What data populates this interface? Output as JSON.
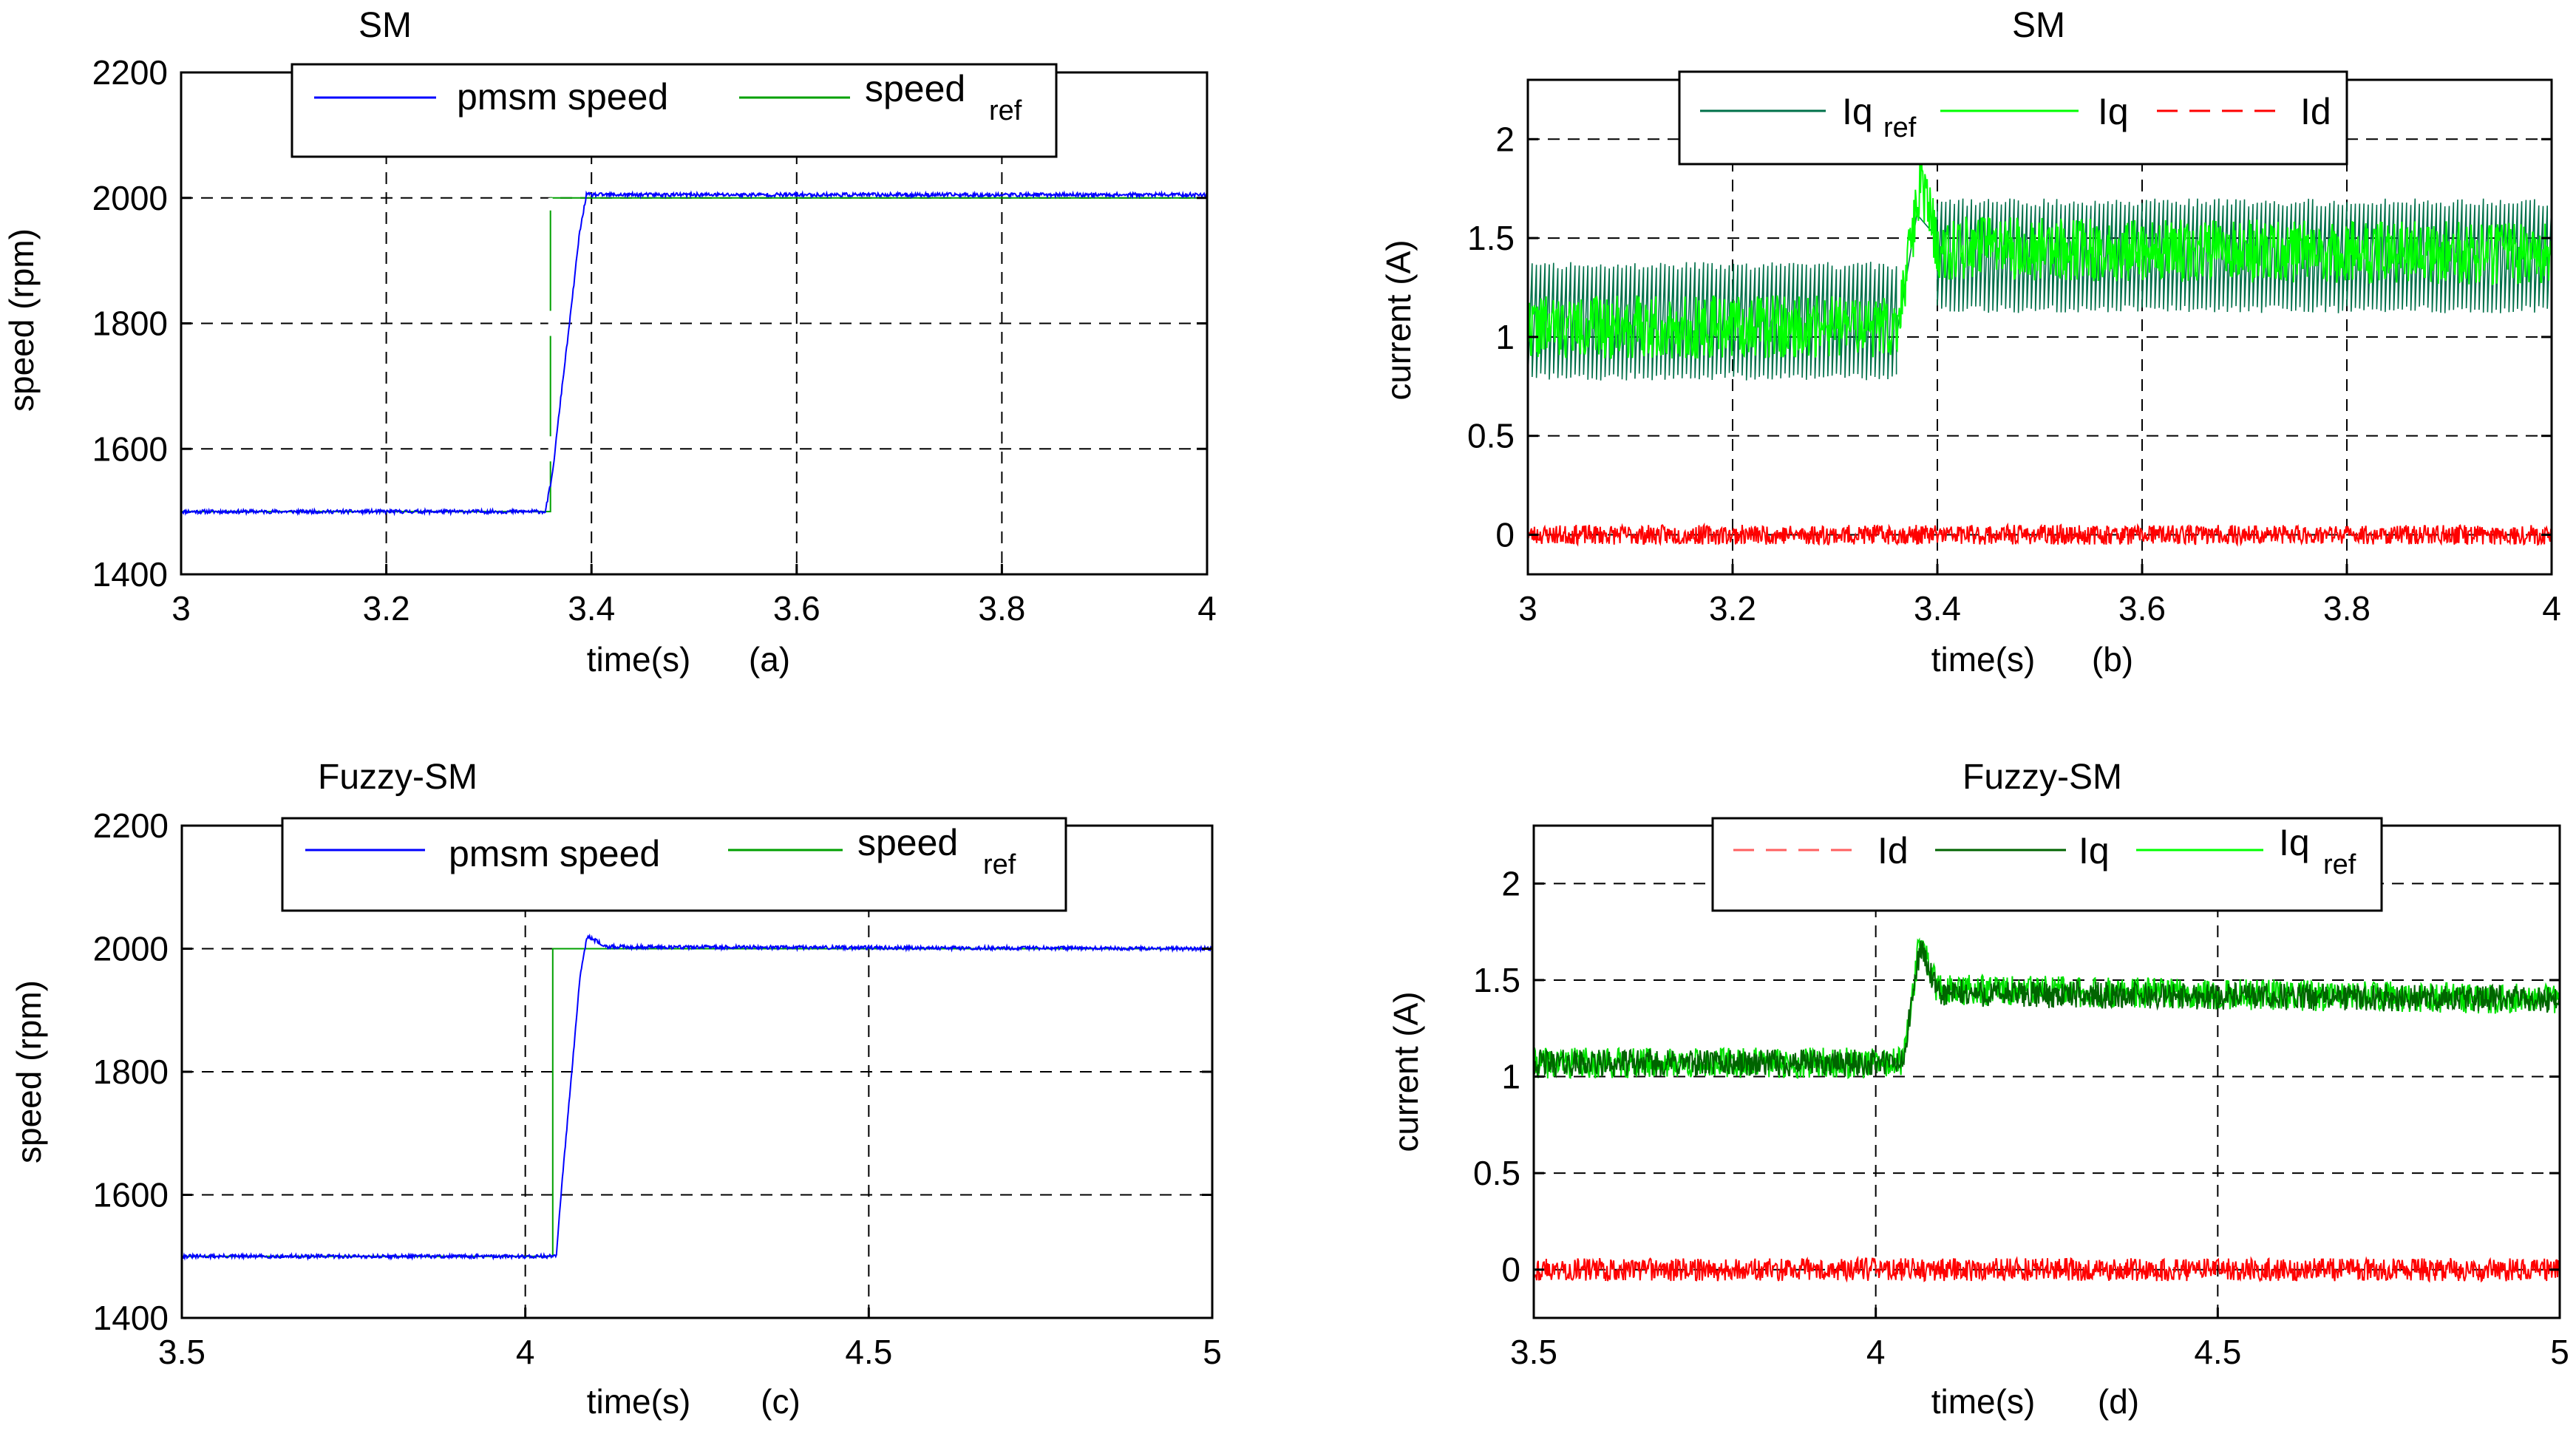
{
  "chart_data": [
    {
      "id": "a",
      "type": "line",
      "title": "SM",
      "xlabel": "time(s)",
      "caption": "(a)",
      "ylabel": "speed (rpm)",
      "xlim": [
        3,
        4
      ],
      "ylim": [
        1400,
        2200
      ],
      "xticks": [
        3,
        3.2,
        3.4,
        3.6,
        3.8,
        4
      ],
      "xtick_labels": [
        "3",
        "3.2",
        "3.4",
        "3.6",
        "3.8",
        "4"
      ],
      "yticks": [
        1400,
        1600,
        1800,
        2000,
        2200
      ],
      "ytick_labels": [
        "1400",
        "1600",
        "1800",
        "2000",
        "2200"
      ],
      "legend": [
        {
          "label": "pmsm speed",
          "sub": "",
          "color": "#0000ff",
          "dash": "solid"
        },
        {
          "label": "speed",
          "sub": "ref",
          "color": "#00a000",
          "dash": "solid"
        }
      ],
      "series": [
        {
          "name": "speed_ref",
          "color": "#00a000",
          "dash": "solid",
          "noise": 0,
          "seed": 0,
          "points": [
            [
              3.0,
              1500
            ],
            [
              3.36,
              1500
            ],
            [
              3.36,
              2000
            ],
            [
              4.0,
              2000
            ]
          ],
          "gaps": [
            [
              1580,
              1620
            ],
            [
              1780,
              1820
            ],
            [
              1980,
              2000
            ]
          ]
        },
        {
          "name": "pmsm speed",
          "color": "#0000ff",
          "dash": "solid",
          "noise": 3,
          "seed": 11,
          "points": [
            [
              3.0,
              1500
            ],
            [
              3.355,
              1500
            ],
            [
              3.362,
              1560
            ],
            [
              3.37,
              1680
            ],
            [
              3.38,
              1820
            ],
            [
              3.388,
              1940
            ],
            [
              3.395,
              2005
            ],
            [
              4.0,
              2005
            ]
          ]
        }
      ]
    },
    {
      "id": "b",
      "type": "line",
      "title": "SM",
      "xlabel": "time(s)",
      "caption": "(b)",
      "ylabel": "current (A)",
      "xlim": [
        3,
        4
      ],
      "ylim": [
        -0.2,
        2.3
      ],
      "xticks": [
        3,
        3.2,
        3.4,
        3.6,
        3.8,
        4
      ],
      "xtick_labels": [
        "3",
        "3.2",
        "3.4",
        "3.6",
        "3.8",
        "4"
      ],
      "yticks": [
        0,
        0.5,
        1,
        1.5,
        2
      ],
      "ytick_labels": [
        "0",
        "0.5",
        "1",
        "1.5",
        "2"
      ],
      "legend": [
        {
          "label": "Iq",
          "sub": "ref",
          "color": "#00704a",
          "dash": "solid"
        },
        {
          "label": "Iq",
          "sub": "",
          "color": "#00ff00",
          "dash": "solid"
        },
        {
          "label": "Id",
          "sub": "",
          "color": "#ff0000",
          "dash": "dashed"
        }
      ],
      "series": [
        {
          "name": "Iq_ref",
          "color": "#00704a",
          "dash": "solid",
          "square": true,
          "seed": 21,
          "bands": [
            [
              3.0,
              3.36,
              0.78,
              1.38
            ],
            [
              3.4,
              4.0,
              1.12,
              1.7
            ]
          ],
          "points": [
            [
              3.36,
              1.0
            ],
            [
              3.38,
              1.62
            ],
            [
              3.4,
              1.5
            ]
          ]
        },
        {
          "name": "Iq",
          "color": "#00ff00",
          "dash": "solid",
          "noise": 0.16,
          "seed": 22,
          "points": [
            [
              3.0,
              1.05
            ],
            [
              3.36,
              1.05
            ],
            [
              3.385,
              1.78
            ],
            [
              3.4,
              1.45
            ],
            [
              4.0,
              1.42
            ]
          ]
        },
        {
          "name": "Id",
          "color": "#ff0000",
          "dash": "solid",
          "noise": 0.05,
          "seed": 23,
          "points": [
            [
              3.0,
              0.0
            ],
            [
              4.0,
              0.0
            ]
          ]
        }
      ]
    },
    {
      "id": "c",
      "type": "line",
      "title": "Fuzzy-SM",
      "xlabel": "time(s)",
      "caption": "(c)",
      "ylabel": "speed (rpm)",
      "xlim": [
        3.5,
        5
      ],
      "ylim": [
        1400,
        2200
      ],
      "xticks": [
        3.5,
        4,
        4.5,
        5
      ],
      "xtick_labels": [
        "3.5",
        "4",
        "4.5",
        "5"
      ],
      "yticks": [
        1400,
        1600,
        1800,
        2000,
        2200
      ],
      "ytick_labels": [
        "1400",
        "1600",
        "1800",
        "2000",
        "2200"
      ],
      "legend": [
        {
          "label": "pmsm speed",
          "sub": "",
          "color": "#0000ff",
          "dash": "solid"
        },
        {
          "label": "speed",
          "sub": "ref",
          "color": "#00a000",
          "dash": "solid"
        }
      ],
      "series": [
        {
          "name": "speed_ref",
          "color": "#00a000",
          "dash": "solid",
          "noise": 0,
          "seed": 0,
          "points": [
            [
              3.5,
              1500
            ],
            [
              4.04,
              1500
            ],
            [
              4.04,
              2000
            ],
            [
              5.0,
              2000
            ]
          ]
        },
        {
          "name": "pmsm speed",
          "color": "#0000ff",
          "dash": "solid",
          "noise": 3,
          "seed": 31,
          "points": [
            [
              3.5,
              1500
            ],
            [
              4.045,
              1500
            ],
            [
              4.055,
              1640
            ],
            [
              4.07,
              1830
            ],
            [
              4.08,
              1960
            ],
            [
              4.09,
              2020
            ],
            [
              4.12,
              2003
            ],
            [
              5.0,
              2000
            ]
          ]
        }
      ]
    },
    {
      "id": "d",
      "type": "line",
      "title": "Fuzzy-SM",
      "xlabel": "time(s)",
      "caption": "(d)",
      "ylabel": "current (A)",
      "xlim": [
        3.5,
        5
      ],
      "ylim": [
        -0.25,
        2.3
      ],
      "xticks": [
        3.5,
        4,
        4.5,
        5
      ],
      "xtick_labels": [
        "3.5",
        "4",
        "4.5",
        "5"
      ],
      "yticks": [
        0,
        0.5,
        1,
        1.5,
        2
      ],
      "ytick_labels": [
        "0",
        "0.5",
        "1",
        "1.5",
        "2"
      ],
      "legend": [
        {
          "label": "Id",
          "sub": "",
          "color": "#ff6060",
          "dash": "dashed"
        },
        {
          "label": "Iq",
          "sub": "",
          "color": "#006400",
          "dash": "solid"
        },
        {
          "label": "Iq",
          "sub": "ref",
          "color": "#00ff00",
          "dash": "solid"
        }
      ],
      "series": [
        {
          "name": "Iq_ref",
          "color": "#00e000",
          "dash": "solid",
          "noise": 0.08,
          "seed": 41,
          "points": [
            [
              3.5,
              1.07
            ],
            [
              4.04,
              1.07
            ],
            [
              4.065,
              1.72
            ],
            [
              4.09,
              1.45
            ],
            [
              5.0,
              1.4
            ]
          ]
        },
        {
          "name": "Iq",
          "color": "#006400",
          "dash": "solid",
          "noise": 0.07,
          "seed": 42,
          "points": [
            [
              3.5,
              1.07
            ],
            [
              4.04,
              1.07
            ],
            [
              4.065,
              1.68
            ],
            [
              4.09,
              1.43
            ],
            [
              5.0,
              1.4
            ]
          ]
        },
        {
          "name": "Id",
          "color": "#ff0000",
          "dash": "solid",
          "noise": 0.06,
          "seed": 43,
          "points": [
            [
              3.5,
              0.0
            ],
            [
              5.0,
              0.0
            ]
          ]
        }
      ]
    }
  ]
}
